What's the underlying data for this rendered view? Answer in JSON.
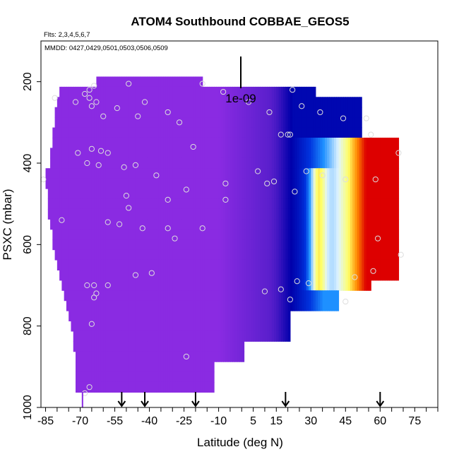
{
  "chart_data": {
    "type": "heatmap",
    "title": "ATOM4 Southbound COBBAE_GEOS5",
    "flights_note": "Flts: 2,3,4,5,6,7",
    "dates_note": "MMDD: 0427,0429,0501,0503,0506,0509",
    "scale_label": "1e-09",
    "xlabel": "Latitude (deg N)",
    "ylabel": "PSXC (mbar)",
    "xlim": [
      -87,
      85
    ],
    "ylim": [
      1000,
      100
    ],
    "x_tick_labels": [
      "-85",
      "-70",
      "-55",
      "-40",
      "-25",
      "-10",
      "5",
      "15",
      "30",
      "45",
      "60",
      "75"
    ],
    "x_tick_values": [
      -85,
      -70,
      -55,
      -40,
      -25,
      -10,
      5,
      15,
      30,
      45,
      60,
      75
    ],
    "y_tick_labels": [
      "200",
      "400",
      "600",
      "800",
      "1000"
    ],
    "y_tick_values": [
      200,
      400,
      600,
      800,
      1000
    ],
    "layers": [
      {
        "p": 200,
        "lat_min": -63,
        "lat_max": -17
      },
      {
        "p": 225,
        "lat_min": -79,
        "lat_max": 32
      },
      {
        "p": 250,
        "lat_min": -80,
        "lat_max": 52
      },
      {
        "p": 275,
        "lat_min": -81,
        "lat_max": 52
      },
      {
        "p": 300,
        "lat_min": -81,
        "lat_max": 52
      },
      {
        "p": 325,
        "lat_min": -82,
        "lat_max": 52
      },
      {
        "p": 350,
        "lat_min": -82,
        "lat_max": 68
      },
      {
        "p": 375,
        "lat_min": -83,
        "lat_max": 68
      },
      {
        "p": 400,
        "lat_min": -83,
        "lat_max": 68
      },
      {
        "p": 425,
        "lat_min": -85,
        "lat_max": 68
      },
      {
        "p": 450,
        "lat_min": -85,
        "lat_max": 68
      },
      {
        "p": 475,
        "lat_min": -84,
        "lat_max": 68
      },
      {
        "p": 500,
        "lat_min": -84,
        "lat_max": 68
      },
      {
        "p": 525,
        "lat_min": -84,
        "lat_max": 68
      },
      {
        "p": 550,
        "lat_min": -83,
        "lat_max": 68
      },
      {
        "p": 575,
        "lat_min": -82,
        "lat_max": 68
      },
      {
        "p": 600,
        "lat_min": -82,
        "lat_max": 68
      },
      {
        "p": 625,
        "lat_min": -81,
        "lat_max": 68
      },
      {
        "p": 650,
        "lat_min": -80,
        "lat_max": 68
      },
      {
        "p": 675,
        "lat_min": -79,
        "lat_max": 68
      },
      {
        "p": 700,
        "lat_min": -78,
        "lat_max": 56
      },
      {
        "p": 725,
        "lat_min": -77,
        "lat_max": 42
      },
      {
        "p": 750,
        "lat_min": -76,
        "lat_max": 42
      },
      {
        "p": 775,
        "lat_min": -75,
        "lat_max": 21
      },
      {
        "p": 800,
        "lat_min": -74,
        "lat_max": 21
      },
      {
        "p": 825,
        "lat_min": -73,
        "lat_max": 21
      },
      {
        "p": 850,
        "lat_min": -73,
        "lat_max": 1
      },
      {
        "p": 875,
        "lat_min": -72,
        "lat_max": 1
      },
      {
        "p": 900,
        "lat_min": -72,
        "lat_max": -12
      },
      {
        "p": 925,
        "lat_min": -72,
        "lat_max": -12
      },
      {
        "p": 950,
        "lat_min": -72,
        "lat_max": -12
      }
    ],
    "observations": [
      {
        "lat": -81,
        "p": 240
      },
      {
        "lat": -72,
        "p": 250
      },
      {
        "lat": -68,
        "p": 230
      },
      {
        "lat": -66,
        "p": 220
      },
      {
        "lat": -64,
        "p": 210
      },
      {
        "lat": -66,
        "p": 240
      },
      {
        "lat": -65,
        "p": 260
      },
      {
        "lat": -63,
        "p": 250
      },
      {
        "lat": -60,
        "p": 285
      },
      {
        "lat": -54,
        "p": 265
      },
      {
        "lat": -49,
        "p": 205
      },
      {
        "lat": -45,
        "p": 285
      },
      {
        "lat": -42,
        "p": 250
      },
      {
        "lat": -32,
        "p": 275
      },
      {
        "lat": -27,
        "p": 300
      },
      {
        "lat": -17,
        "p": 205
      },
      {
        "lat": -8,
        "p": 225
      },
      {
        "lat": 3,
        "p": 250
      },
      {
        "lat": 12,
        "p": 275
      },
      {
        "lat": 22,
        "p": 220
      },
      {
        "lat": 26,
        "p": 260
      },
      {
        "lat": 34,
        "p": 275
      },
      {
        "lat": 44,
        "p": 290
      },
      {
        "lat": 54,
        "p": 290
      },
      {
        "lat": 17,
        "p": 330
      },
      {
        "lat": 20,
        "p": 330
      },
      {
        "lat": 21,
        "p": 330
      },
      {
        "lat": 56,
        "p": 330
      },
      {
        "lat": -71,
        "p": 375
      },
      {
        "lat": -65,
        "p": 365
      },
      {
        "lat": -61,
        "p": 370
      },
      {
        "lat": -58,
        "p": 375
      },
      {
        "lat": -67,
        "p": 400
      },
      {
        "lat": -62,
        "p": 405
      },
      {
        "lat": -51,
        "p": 410
      },
      {
        "lat": -46,
        "p": 405
      },
      {
        "lat": -37,
        "p": 430
      },
      {
        "lat": -21,
        "p": 360
      },
      {
        "lat": -24,
        "p": 465
      },
      {
        "lat": -7,
        "p": 450
      },
      {
        "lat": 7,
        "p": 420
      },
      {
        "lat": 11,
        "p": 450
      },
      {
        "lat": 14,
        "p": 445
      },
      {
        "lat": 23,
        "p": 470
      },
      {
        "lat": 28,
        "p": 420
      },
      {
        "lat": 35,
        "p": 430
      },
      {
        "lat": 45,
        "p": 440
      },
      {
        "lat": 58,
        "p": 440
      },
      {
        "lat": 68,
        "p": 375
      },
      {
        "lat": -86,
        "p": 440
      },
      {
        "lat": -50,
        "p": 480
      },
      {
        "lat": -49,
        "p": 510
      },
      {
        "lat": -32,
        "p": 490
      },
      {
        "lat": -7,
        "p": 490
      },
      {
        "lat": -78,
        "p": 540
      },
      {
        "lat": -58,
        "p": 545
      },
      {
        "lat": -53,
        "p": 550
      },
      {
        "lat": -43,
        "p": 560
      },
      {
        "lat": -32,
        "p": 560
      },
      {
        "lat": -17,
        "p": 560
      },
      {
        "lat": -29,
        "p": 585
      },
      {
        "lat": 59,
        "p": 585
      },
      {
        "lat": 69,
        "p": 625
      },
      {
        "lat": -64,
        "p": 700
      },
      {
        "lat": -67,
        "p": 700
      },
      {
        "lat": -63,
        "p": 720
      },
      {
        "lat": -64,
        "p": 730
      },
      {
        "lat": -58,
        "p": 700
      },
      {
        "lat": -46,
        "p": 675
      },
      {
        "lat": -39,
        "p": 670
      },
      {
        "lat": 10,
        "p": 715
      },
      {
        "lat": 17,
        "p": 710
      },
      {
        "lat": 21,
        "p": 735
      },
      {
        "lat": 24,
        "p": 690
      },
      {
        "lat": 29,
        "p": 695
      },
      {
        "lat": 45,
        "p": 740
      },
      {
        "lat": 49,
        "p": 680
      },
      {
        "lat": 57,
        "p": 665
      },
      {
        "lat": -65,
        "p": 795
      },
      {
        "lat": -24,
        "p": 875
      },
      {
        "lat": -66,
        "p": 950
      },
      {
        "lat": -68,
        "p": 965
      }
    ],
    "flight_marker_lats": [
      -52,
      -42,
      -20,
      19,
      60
    ],
    "colors": {
      "background_field": "#8a2be2",
      "low_blue": "#0000aa",
      "mid_blue": "#1e90ff",
      "light": "#e0f4ff",
      "yellow": "#ffff66",
      "orange": "#ff8800",
      "red": "#dd0000",
      "observation_marker": "#dddddd"
    }
  }
}
